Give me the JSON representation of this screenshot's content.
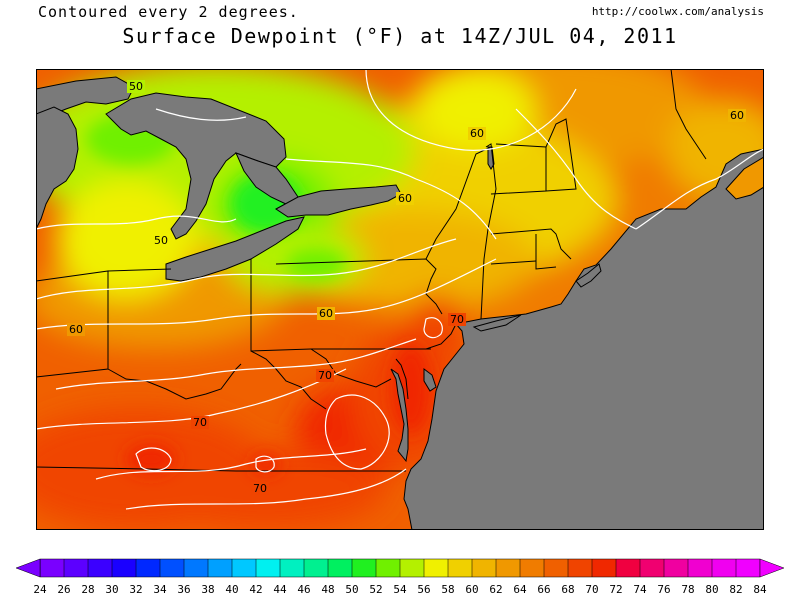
{
  "header": {
    "contour_note": "Contoured every 2 degrees.",
    "source_url": "http://coolwx.com/analysis",
    "title": "Surface Dewpoint (°F) at 14Z/JUL 04, 2011"
  },
  "contour_labels": [
    "50",
    "50",
    "60",
    "60",
    "60",
    "60",
    "60",
    "70",
    "70",
    "70",
    "70"
  ],
  "colorbar": {
    "ticks": [
      "24",
      "26",
      "28",
      "30",
      "32",
      "34",
      "36",
      "38",
      "40",
      "42",
      "44",
      "46",
      "48",
      "50",
      "52",
      "54",
      "56",
      "58",
      "60",
      "62",
      "64",
      "66",
      "68",
      "70",
      "72",
      "74",
      "76",
      "78",
      "80",
      "82",
      "84"
    ],
    "colors": [
      "#7a00ff",
      "#5c00ff",
      "#3b00ff",
      "#1a00ff",
      "#0028ff",
      "#0050ff",
      "#0078ff",
      "#00a0ff",
      "#00c8ff",
      "#00f0f0",
      "#00f0c0",
      "#00f090",
      "#00f060",
      "#20f020",
      "#70f000",
      "#b4f000",
      "#f0f000",
      "#f0d000",
      "#f0b400",
      "#f09800",
      "#f07c00",
      "#f06000",
      "#f04400",
      "#f02800",
      "#f00040",
      "#f00070",
      "#f000a0",
      "#f000d0",
      "#f000f0",
      "#f000ff"
    ],
    "left_arrow_color": "#7a00ff",
    "right_arrow_color": "#f000ff"
  },
  "colors": {
    "land_gray": "#7a7a7a",
    "border": "#000000",
    "contour": "#ffffff"
  }
}
